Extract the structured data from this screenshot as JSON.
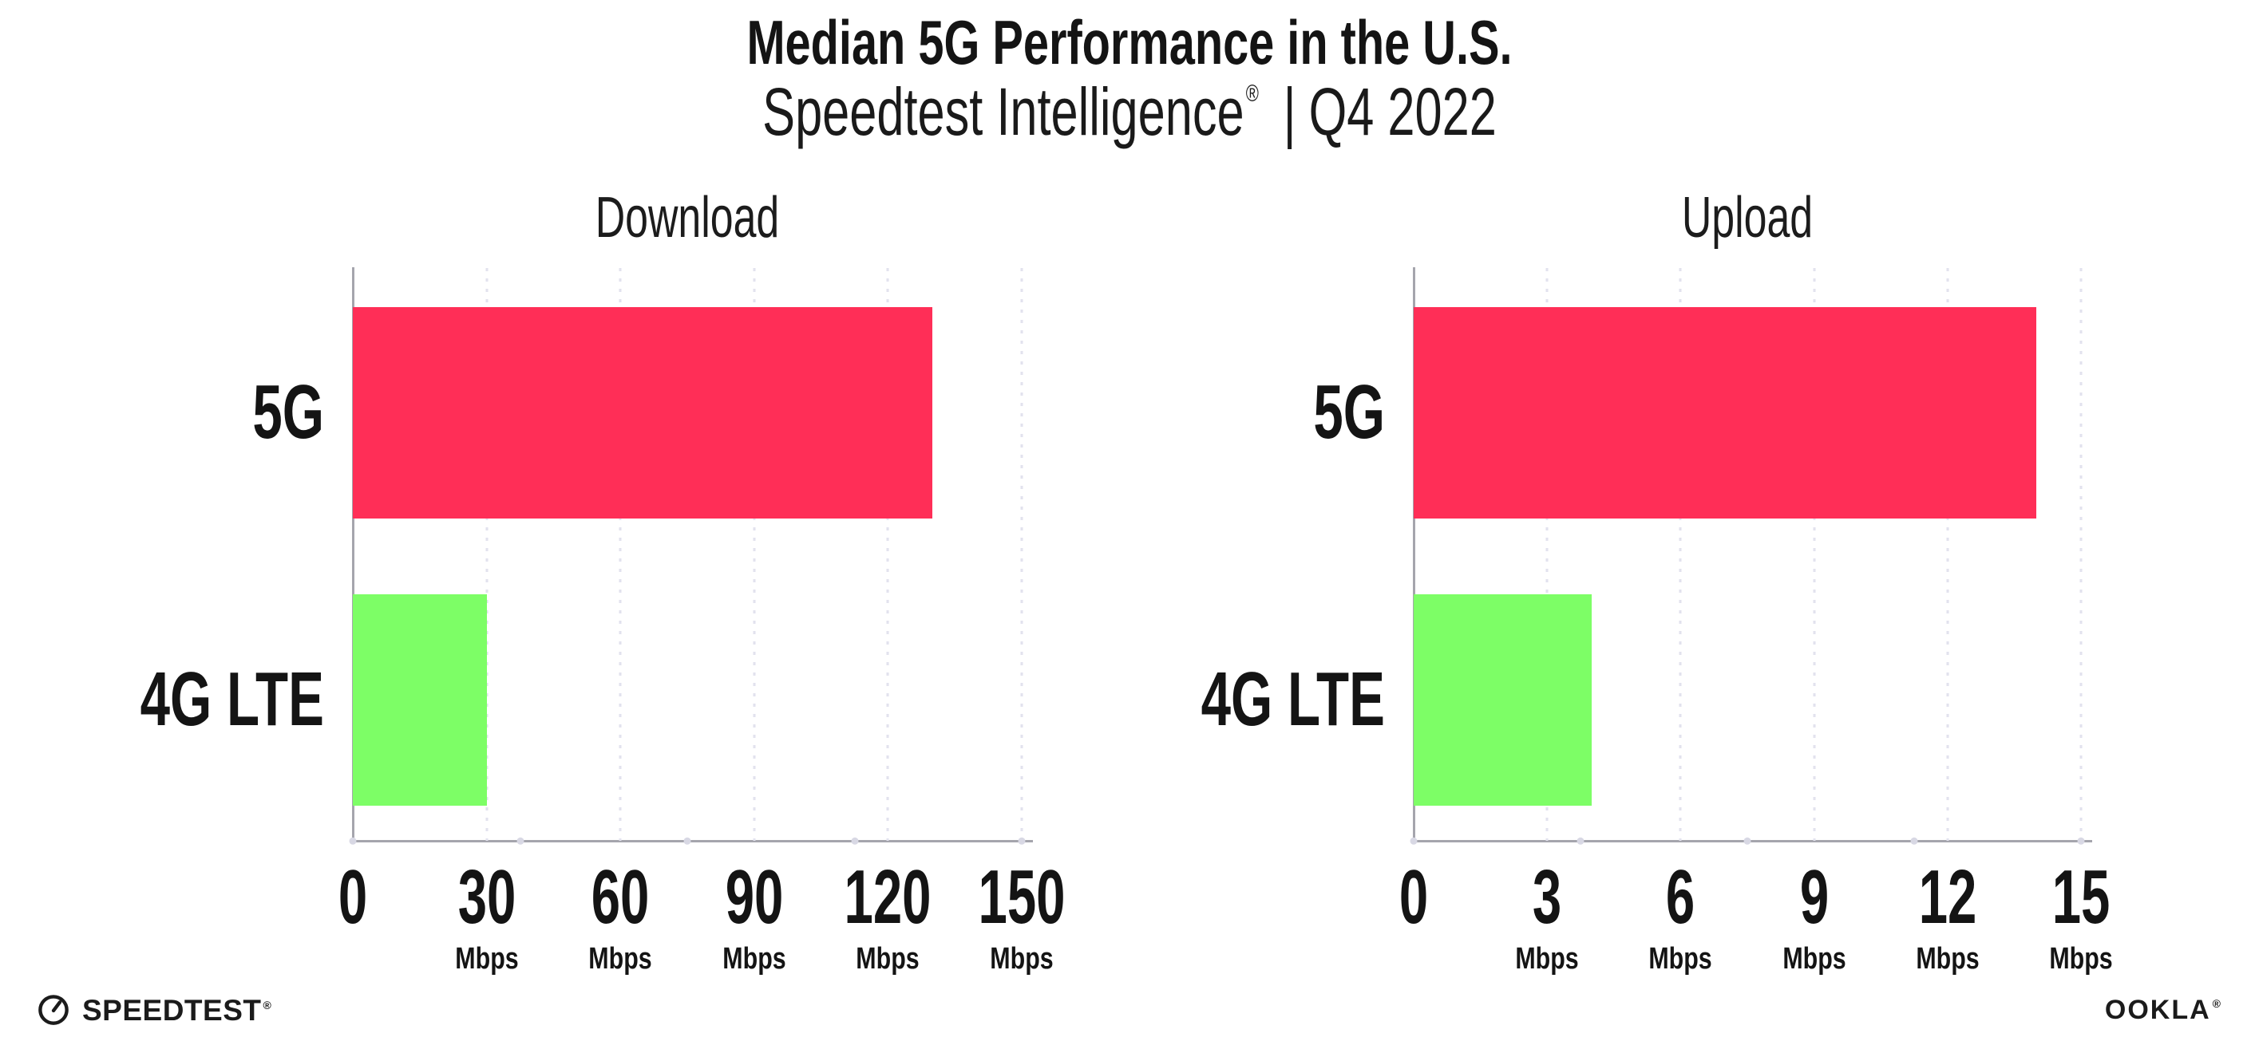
{
  "header": {
    "title": "Median 5G Performance in the U.S.",
    "subtitle": {
      "brand": "Speedtest Intelligence",
      "registered_mark": "®",
      "separator": "|",
      "period": "Q4 2022"
    }
  },
  "chart_data": [
    {
      "type": "bar",
      "orientation": "horizontal",
      "title": "Download",
      "categories": [
        "5G",
        "4G LTE"
      ],
      "values": [
        130,
        30
      ],
      "unit": "Mbps",
      "xlim": [
        0,
        150
      ],
      "xticks": [
        0,
        30,
        60,
        90,
        120,
        150
      ],
      "grid": "dotted vertical gridlines at each tick, no data labels",
      "legend": "none",
      "bar_colors": [
        "#FF2E57",
        "#7DFE66"
      ]
    },
    {
      "type": "bar",
      "orientation": "horizontal",
      "title": "Upload",
      "categories": [
        "5G",
        "4G LTE"
      ],
      "values": [
        14,
        4
      ],
      "unit": "Mbps",
      "xlim": [
        0,
        15
      ],
      "xticks": [
        0,
        3,
        6,
        9,
        12,
        15
      ],
      "grid": "dotted vertical gridlines at each tick, no data labels",
      "legend": "none",
      "bar_colors": [
        "#FF2E57",
        "#7DFE66"
      ]
    }
  ],
  "colors": {
    "bar_5g": "#FF2E57",
    "bar_4g_lte": "#7DFE66",
    "axis_line": "#a5a5ad",
    "gridline": "#e2e2ee",
    "axis_dot": "#d8d8e4",
    "text": "#141414",
    "background": "#ffffff"
  },
  "footer": {
    "speedtest_label": "SPEEDTEST",
    "speedtest_mark": "®",
    "ookla_label": "OOKLA",
    "ookla_mark": "®"
  }
}
